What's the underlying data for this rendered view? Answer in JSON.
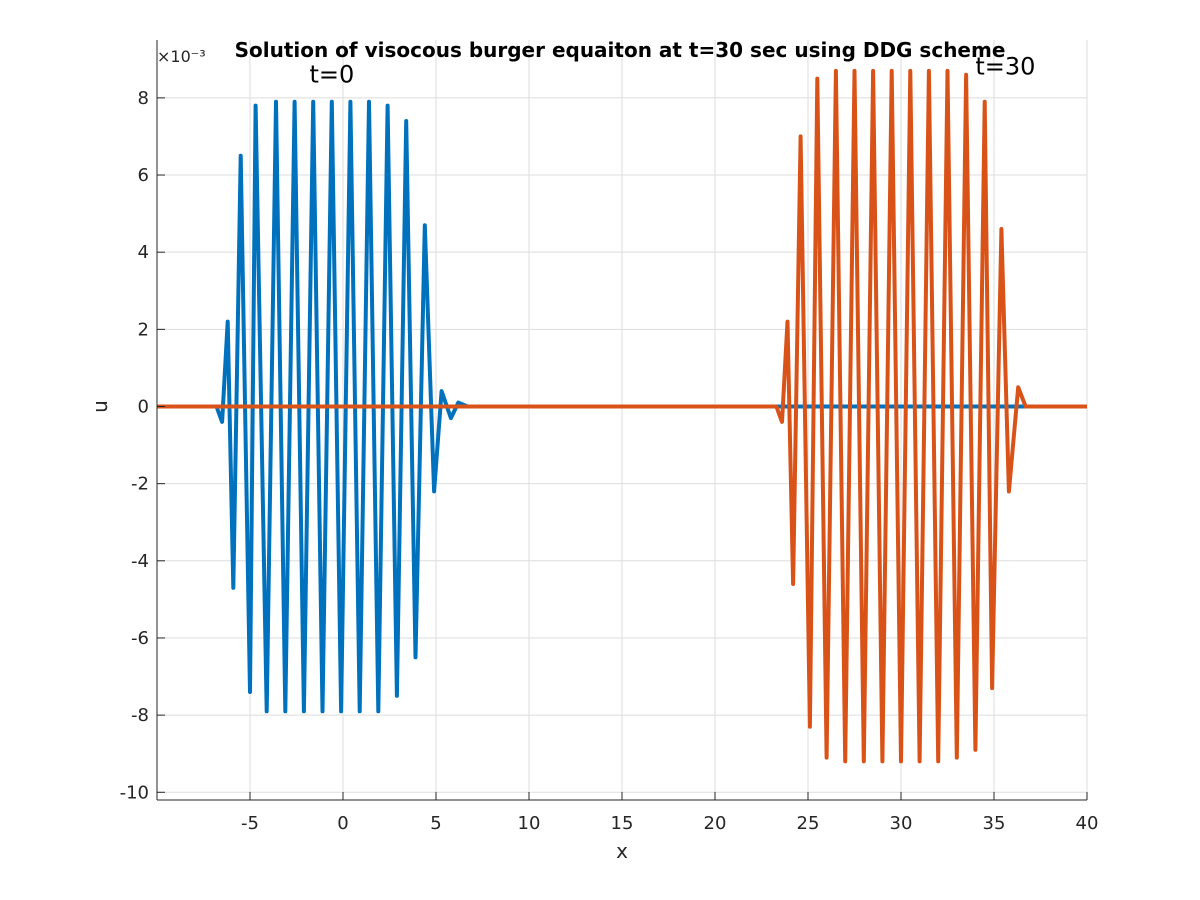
{
  "chart_data": {
    "type": "line",
    "title": "Solution of visocous burger equaiton at t=30 sec using DDG scheme",
    "xlabel": "x",
    "ylabel": "u",
    "y_exponent_label": "×10⁻³",
    "xlim": [
      -10,
      40
    ],
    "ylim": [
      -10.2,
      9.5
    ],
    "xticks": [
      -5,
      0,
      5,
      10,
      15,
      20,
      25,
      30,
      35,
      40
    ],
    "yticks": [
      -10,
      -8,
      -6,
      -4,
      -2,
      0,
      2,
      4,
      6,
      8
    ],
    "grid": true,
    "annotations": [
      {
        "text": "t=0",
        "x": -1.8,
        "y": 8.4
      },
      {
        "text": "t=30",
        "x": 34.0,
        "y": 8.6
      }
    ],
    "series": [
      {
        "color": "#0072BD",
        "x": [
          -10,
          -6.8,
          -6.5,
          -6.2,
          -5.9,
          -5.5,
          -5.0,
          -4.7,
          -4.1,
          -3.6,
          -3.1,
          -2.6,
          -2.1,
          -1.6,
          -1.1,
          -0.6,
          -0.1,
          0.4,
          0.9,
          1.4,
          1.9,
          2.4,
          2.9,
          3.4,
          3.9,
          4.4,
          4.9,
          5.3,
          5.8,
          6.2,
          6.7,
          40
        ],
        "y": [
          0,
          0,
          -0.4,
          2.2,
          -4.7,
          6.5,
          -7.4,
          7.8,
          -7.9,
          7.9,
          -7.9,
          7.9,
          -7.9,
          7.9,
          -7.9,
          7.9,
          -7.9,
          7.9,
          -7.9,
          7.9,
          -7.9,
          7.8,
          -7.5,
          7.4,
          -6.5,
          4.7,
          -2.2,
          0.4,
          -0.3,
          0.1,
          0,
          0
        ]
      },
      {
        "color": "#D95319",
        "x": [
          -10,
          23.3,
          23.6,
          23.9,
          24.2,
          24.6,
          25.1,
          25.5,
          26.0,
          26.5,
          27.0,
          27.5,
          28.0,
          28.5,
          29.0,
          29.5,
          30.0,
          30.5,
          31.0,
          31.5,
          32.0,
          32.5,
          33.0,
          33.5,
          34.0,
          34.5,
          34.9,
          35.4,
          35.8,
          36.3,
          36.7,
          40
        ],
        "y": [
          0,
          0,
          -0.4,
          2.2,
          -4.6,
          7.0,
          -8.3,
          8.5,
          -9.1,
          8.7,
          -9.2,
          8.7,
          -9.2,
          8.7,
          -9.2,
          8.7,
          -9.2,
          8.7,
          -9.2,
          8.7,
          -9.2,
          8.7,
          -9.1,
          8.6,
          -8.9,
          7.9,
          -7.3,
          4.6,
          -2.2,
          0.5,
          0,
          0
        ]
      }
    ]
  }
}
